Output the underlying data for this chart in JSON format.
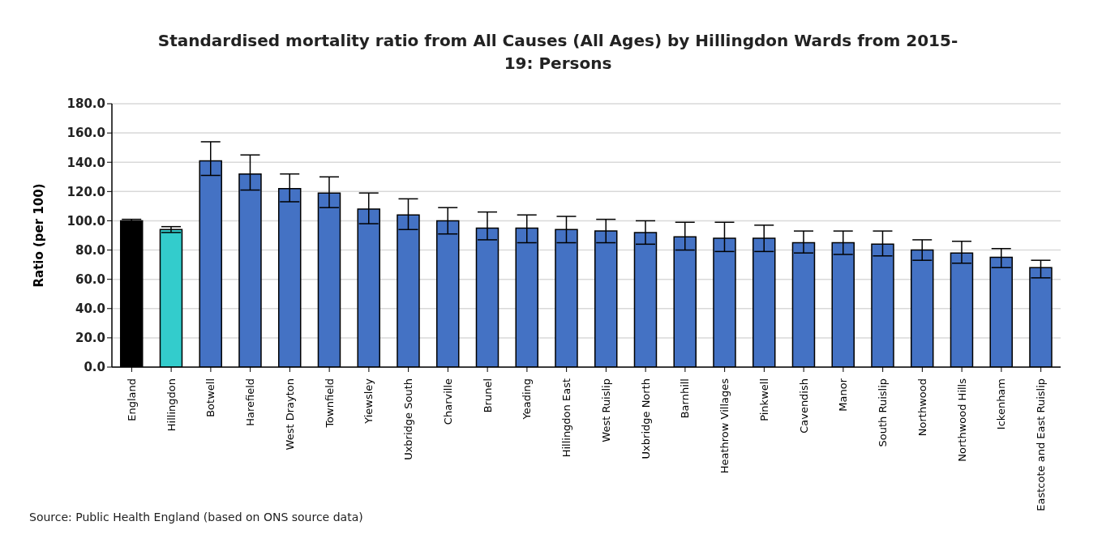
{
  "chart_data": {
    "type": "bar",
    "title": "Standardised mortality ratio from All  Causes (All  Ages) by Hillingdon Wards from 2015-19: Persons",
    "ylabel": "Ratio (per 100)",
    "categories": [
      "England",
      "Hillingdon",
      "Botwell",
      "Harefield",
      "West Drayton",
      "Townfield",
      "Yiewsley",
      "Uxbridge South",
      "Charville",
      "Brunel",
      "Yeading",
      "Hillingdon East",
      "West Ruislip",
      "Uxbridge North",
      "Barnhill",
      "Heathrow Villages",
      "Pinkwell",
      "Cavendish",
      "Manor",
      "South Ruislip",
      "Northwood",
      "Northwood Hills",
      "Ickenham",
      "Eastcote and East Ruislip"
    ],
    "values": [
      100,
      94,
      141,
      132,
      122,
      119,
      108,
      104,
      100,
      95,
      95,
      94,
      93,
      92,
      89,
      88,
      88,
      85,
      85,
      84,
      80,
      78,
      75,
      68
    ],
    "errors": [
      [
        99,
        101
      ],
      [
        92,
        96
      ],
      [
        131,
        154
      ],
      [
        121,
        145
      ],
      [
        113,
        132
      ],
      [
        109,
        130
      ],
      [
        98,
        119
      ],
      [
        94,
        115
      ],
      [
        91,
        109
      ],
      [
        87,
        106
      ],
      [
        85,
        104
      ],
      [
        85,
        103
      ],
      [
        85,
        101
      ],
      [
        84,
        100
      ],
      [
        80,
        99
      ],
      [
        79,
        99
      ],
      [
        79,
        97
      ],
      [
        78,
        93
      ],
      [
        77,
        93
      ],
      [
        76,
        93
      ],
      [
        73,
        87
      ],
      [
        71,
        86
      ],
      [
        68,
        81
      ],
      [
        61,
        73
      ]
    ],
    "colors": [
      "#000000",
      "#33cccc",
      "#4472c4",
      "#4472c4",
      "#4472c4",
      "#4472c4",
      "#4472c4",
      "#4472c4",
      "#4472c4",
      "#4472c4",
      "#4472c4",
      "#4472c4",
      "#4472c4",
      "#4472c4",
      "#4472c4",
      "#4472c4",
      "#4472c4",
      "#4472c4",
      "#4472c4",
      "#4472c4",
      "#4472c4",
      "#4472c4",
      "#4472c4",
      "#4472c4"
    ],
    "ylim": [
      0,
      180
    ],
    "yticks": [
      {
        "value": 0,
        "label": "0.0"
      },
      {
        "value": 20,
        "label": "20.0"
      },
      {
        "value": 40,
        "label": "40.0"
      },
      {
        "value": 60,
        "label": "60.0"
      },
      {
        "value": 80,
        "label": "80.0"
      },
      {
        "value": 100,
        "label": "100.0"
      },
      {
        "value": 120,
        "label": "120.0"
      },
      {
        "value": 140,
        "label": "140.0"
      },
      {
        "value": 160,
        "label": "160.0"
      },
      {
        "value": 180,
        "label": "180.0"
      }
    ],
    "grid": "y",
    "legend": false,
    "annotations": [
      "Source: Public Health England (based on ONS source data)"
    ]
  }
}
